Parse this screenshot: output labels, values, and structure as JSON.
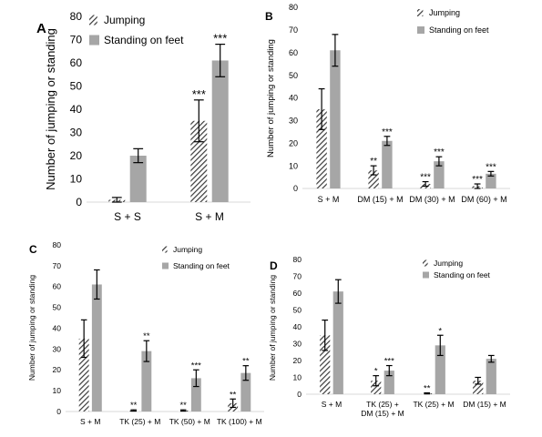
{
  "colors": {
    "standing": "#a6a6a6",
    "jumping_hatch": "#3a3a3a",
    "axis": "#d9d9d9",
    "text": "#000000"
  },
  "chart_data": [
    {
      "panel_label": "A",
      "type": "bar",
      "ylabel": "Number of jumping or standing",
      "ylim": [
        0,
        80
      ],
      "yticks": [
        "0",
        "10",
        "20",
        "30",
        "40",
        "50",
        "60",
        "70",
        "80"
      ],
      "categories": [
        "S + S",
        "S + M"
      ],
      "legend": {
        "position": "top-left",
        "entries": [
          "Jumping",
          "Standing on feet"
        ]
      },
      "series": [
        {
          "name": "Jumping",
          "pattern": "hatched",
          "values": [
            1,
            35
          ],
          "errors": [
            1,
            9
          ],
          "significance": [
            "",
            "***"
          ]
        },
        {
          "name": "Standing on feet",
          "pattern": "solid",
          "values": [
            20,
            61
          ],
          "errors": [
            3,
            7
          ],
          "significance": [
            "",
            "***"
          ]
        }
      ]
    },
    {
      "panel_label": "B",
      "type": "bar",
      "ylabel": "Number of jumping or standing",
      "ylim": [
        0,
        80
      ],
      "yticks": [
        "0",
        "10",
        "20",
        "30",
        "40",
        "50",
        "60",
        "70",
        "80"
      ],
      "categories": [
        "S + M",
        "DM (15) + M",
        "DM (30) + M",
        "DM (60) + M"
      ],
      "legend": {
        "position": "top-right",
        "entries": [
          "Jumping",
          "Standing on feet"
        ]
      },
      "series": [
        {
          "name": "Jumping",
          "pattern": "hatched",
          "values": [
            35,
            8,
            2,
            1
          ],
          "errors": [
            9,
            2,
            1,
            1
          ],
          "significance": [
            "",
            "**",
            "***",
            "***"
          ]
        },
        {
          "name": "Standing on feet",
          "pattern": "solid",
          "values": [
            61,
            21,
            12,
            6.5
          ],
          "errors": [
            7,
            2,
            2,
            1
          ],
          "significance": [
            "",
            "***",
            "***",
            "***"
          ]
        }
      ]
    },
    {
      "panel_label": "C",
      "type": "bar",
      "ylabel": "Number of jumping or standing",
      "ylim": [
        0,
        80
      ],
      "yticks": [
        "0",
        "10",
        "20",
        "30",
        "40",
        "50",
        "60",
        "70",
        "80"
      ],
      "categories": [
        "S + M",
        "TK (25) + M",
        "TK (50) + M",
        "TK (100) + M"
      ],
      "legend": {
        "position": "top-right",
        "entries": [
          "Jumping",
          "Standing on feet"
        ]
      },
      "series": [
        {
          "name": "Jumping",
          "pattern": "hatched",
          "values": [
            35,
            0.5,
            0.5,
            4
          ],
          "errors": [
            9,
            0.3,
            0.3,
            2
          ],
          "significance": [
            "",
            "**",
            "**",
            "**"
          ]
        },
        {
          "name": "Standing on feet",
          "pattern": "solid",
          "values": [
            61,
            29,
            16,
            18.5
          ],
          "errors": [
            7,
            5,
            4,
            3.5
          ],
          "significance": [
            "",
            "**",
            "***",
            "**"
          ]
        }
      ]
    },
    {
      "panel_label": "D",
      "type": "bar",
      "ylabel": "Number of jumping or standing",
      "ylim": [
        0,
        80
      ],
      "yticks": [
        "0",
        "10",
        "20",
        "30",
        "40",
        "50",
        "60",
        "70",
        "80"
      ],
      "categories": [
        "S + M",
        "TK (25) + DM (15) + M",
        "TK (25) + M",
        "DM (15) + M"
      ],
      "legend": {
        "position": "top-right",
        "entries": [
          "Jumping",
          "Standing on feet"
        ]
      },
      "series": [
        {
          "name": "Jumping",
          "pattern": "hatched",
          "values": [
            35,
            8,
            0.5,
            8
          ],
          "errors": [
            9,
            3,
            0.3,
            2
          ],
          "significance": [
            "",
            "*",
            "**",
            ""
          ]
        },
        {
          "name": "Standing on feet",
          "pattern": "solid",
          "values": [
            61,
            14,
            29,
            21
          ],
          "errors": [
            7,
            3,
            6,
            2
          ],
          "significance": [
            "",
            "***",
            "*",
            ""
          ]
        }
      ]
    }
  ]
}
